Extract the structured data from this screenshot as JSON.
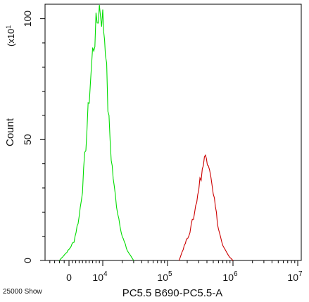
{
  "chart_data": {
    "type": "histogram",
    "title": "",
    "xlabel": "PC5.5 B690-PC5.5-A",
    "ylabel": "Count",
    "y_multiplier_label": "(x10",
    "y_multiplier_exp": "1",
    "events_label": "25000 Show",
    "x_scale": "logicle",
    "ylim": [
      0,
      1060
    ],
    "y_ticks": [
      {
        "value": 0,
        "label": "0"
      },
      {
        "value": 500,
        "label": "50"
      },
      {
        "value": 1000,
        "label": "100"
      }
    ],
    "x_ticks": [
      {
        "value": 0,
        "base": "0",
        "exp": ""
      },
      {
        "value": 10000,
        "base": "10",
        "exp": "4"
      },
      {
        "value": 100000,
        "base": "10",
        "exp": "5"
      },
      {
        "value": 1000000,
        "base": "10",
        "exp": "6"
      },
      {
        "value": 10000000,
        "base": "10",
        "exp": "7"
      }
    ],
    "grid": false,
    "legend": "none",
    "series": [
      {
        "color": "#00dd00",
        "x": [
          -2000,
          0,
          1500,
          3000,
          4000,
          5000,
          6000,
          7000,
          8000,
          9000,
          10000,
          11000,
          12000,
          13500,
          15000,
          17000,
          20000,
          24000,
          30000
        ],
        "values": [
          0,
          45,
          80,
          180,
          300,
          480,
          680,
          860,
          960,
          1050,
          1000,
          900,
          640,
          430,
          300,
          200,
          100,
          40,
          0
        ]
      },
      {
        "color": "#cc0000",
        "x": [
          150000,
          180000,
          220000,
          260000,
          300000,
          340000,
          380000,
          420000,
          460000,
          520000,
          600000,
          700000,
          850000,
          1000000
        ],
        "values": [
          0,
          60,
          120,
          200,
          300,
          380,
          430,
          420,
          360,
          250,
          130,
          60,
          20,
          0
        ]
      }
    ]
  }
}
